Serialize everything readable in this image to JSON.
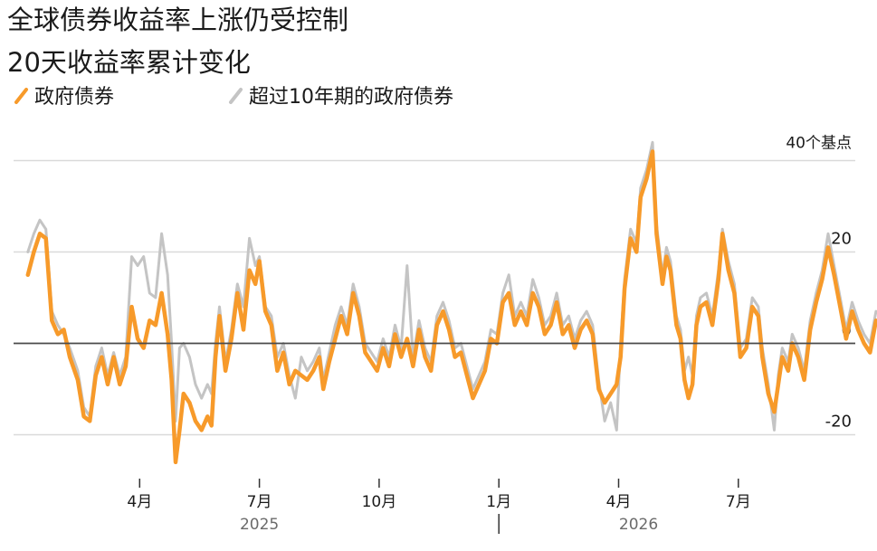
{
  "chart_data": {
    "type": "line",
    "title": "全球债券收益率上涨仍受控制",
    "subtitle": "20天收益率累计变化",
    "unit_label": "40个基点",
    "y_ticks": [
      20,
      0,
      -20
    ],
    "ylim": [
      -27,
      45
    ],
    "x_ticks": [
      {
        "label": "4月",
        "month": 3
      },
      {
        "label": "7月",
        "month": 6
      },
      {
        "label": "10月",
        "month": 9
      },
      {
        "label": "1月",
        "month": 12
      },
      {
        "label": "4月",
        "month": 15
      },
      {
        "label": "7月",
        "month": 18
      }
    ],
    "years": [
      {
        "label": "2025",
        "month": 6
      },
      {
        "label": "2026",
        "month": 15.5
      }
    ],
    "series": [
      {
        "name": "政府债券",
        "color": "#f79a2a",
        "points": [
          [
            0.2,
            15
          ],
          [
            0.35,
            20
          ],
          [
            0.5,
            24
          ],
          [
            0.65,
            23
          ],
          [
            0.8,
            5
          ],
          [
            0.95,
            2
          ],
          [
            1.1,
            3
          ],
          [
            1.25,
            -3
          ],
          [
            1.45,
            -8
          ],
          [
            1.6,
            -16
          ],
          [
            1.75,
            -17
          ],
          [
            1.9,
            -7
          ],
          [
            2.05,
            -3
          ],
          [
            2.2,
            -9
          ],
          [
            2.35,
            -3
          ],
          [
            2.5,
            -9
          ],
          [
            2.65,
            -5
          ],
          [
            2.8,
            8
          ],
          [
            2.95,
            1
          ],
          [
            3.1,
            -1
          ],
          [
            3.25,
            5
          ],
          [
            3.4,
            4
          ],
          [
            3.55,
            11
          ],
          [
            3.7,
            2
          ],
          [
            3.8,
            -8
          ],
          [
            3.9,
            -26
          ],
          [
            4.0,
            -19
          ],
          [
            4.1,
            -11
          ],
          [
            4.25,
            -13
          ],
          [
            4.4,
            -17
          ],
          [
            4.55,
            -19
          ],
          [
            4.7,
            -16
          ],
          [
            4.8,
            -18
          ],
          [
            4.9,
            -3
          ],
          [
            5.0,
            6
          ],
          [
            5.15,
            -6
          ],
          [
            5.3,
            1
          ],
          [
            5.45,
            11
          ],
          [
            5.6,
            3
          ],
          [
            5.75,
            16
          ],
          [
            5.9,
            13
          ],
          [
            6.0,
            18
          ],
          [
            6.15,
            7
          ],
          [
            6.3,
            4
          ],
          [
            6.45,
            -6
          ],
          [
            6.6,
            -2
          ],
          [
            6.75,
            -9
          ],
          [
            6.9,
            -6
          ],
          [
            7.05,
            -7
          ],
          [
            7.2,
            -8
          ],
          [
            7.35,
            -6
          ],
          [
            7.5,
            -3
          ],
          [
            7.6,
            -10
          ],
          [
            7.75,
            -4
          ],
          [
            7.9,
            1
          ],
          [
            8.05,
            6
          ],
          [
            8.2,
            2
          ],
          [
            8.35,
            11
          ],
          [
            8.5,
            6
          ],
          [
            8.65,
            -2
          ],
          [
            8.8,
            -4
          ],
          [
            8.95,
            -6
          ],
          [
            9.1,
            -1
          ],
          [
            9.25,
            -5
          ],
          [
            9.4,
            2
          ],
          [
            9.55,
            -3
          ],
          [
            9.7,
            1
          ],
          [
            9.85,
            -5
          ],
          [
            10.0,
            3
          ],
          [
            10.15,
            -3
          ],
          [
            10.3,
            -6
          ],
          [
            10.45,
            4
          ],
          [
            10.6,
            7
          ],
          [
            10.75,
            3
          ],
          [
            10.9,
            -3
          ],
          [
            11.05,
            -2
          ],
          [
            11.2,
            -7
          ],
          [
            11.35,
            -12
          ],
          [
            11.5,
            -9
          ],
          [
            11.65,
            -6
          ],
          [
            11.8,
            1
          ],
          [
            11.95,
            0
          ],
          [
            12.1,
            9
          ],
          [
            12.25,
            11
          ],
          [
            12.4,
            4
          ],
          [
            12.55,
            7
          ],
          [
            12.7,
            4
          ],
          [
            12.85,
            11
          ],
          [
            13.0,
            8
          ],
          [
            13.15,
            2
          ],
          [
            13.3,
            4
          ],
          [
            13.45,
            9
          ],
          [
            13.6,
            2
          ],
          [
            13.75,
            4
          ],
          [
            13.9,
            -1
          ],
          [
            14.05,
            3
          ],
          [
            14.2,
            5
          ],
          [
            14.35,
            2
          ],
          [
            14.5,
            -10
          ],
          [
            14.65,
            -13
          ],
          [
            14.8,
            -11
          ],
          [
            14.95,
            -9
          ],
          [
            15.05,
            -3
          ],
          [
            15.15,
            12
          ],
          [
            15.3,
            23
          ],
          [
            15.45,
            20
          ],
          [
            15.55,
            32
          ],
          [
            15.7,
            36
          ],
          [
            15.85,
            42
          ],
          [
            15.95,
            24
          ],
          [
            16.1,
            13
          ],
          [
            16.2,
            19
          ],
          [
            16.3,
            16
          ],
          [
            16.45,
            4
          ],
          [
            16.55,
            1
          ],
          [
            16.65,
            -8
          ],
          [
            16.75,
            -12
          ],
          [
            16.85,
            -9
          ],
          [
            16.95,
            4
          ],
          [
            17.05,
            8
          ],
          [
            17.2,
            9
          ],
          [
            17.35,
            4
          ],
          [
            17.5,
            14
          ],
          [
            17.6,
            24
          ],
          [
            17.75,
            16
          ],
          [
            17.9,
            11
          ],
          [
            18.05,
            -3
          ],
          [
            18.2,
            -1
          ],
          [
            18.35,
            8
          ],
          [
            18.5,
            6
          ],
          [
            18.6,
            -3
          ],
          [
            18.75,
            -11
          ],
          [
            18.9,
            -15
          ],
          [
            19.0,
            -9
          ],
          [
            19.1,
            -3
          ],
          [
            19.25,
            -6
          ],
          [
            19.35,
            0
          ],
          [
            19.5,
            -3
          ],
          [
            19.65,
            -8
          ],
          [
            19.8,
            3
          ],
          [
            19.95,
            9
          ],
          [
            20.1,
            14
          ],
          [
            20.25,
            21
          ],
          [
            20.4,
            15
          ],
          [
            20.55,
            8
          ],
          [
            20.7,
            1
          ],
          [
            20.85,
            7
          ],
          [
            21.0,
            3
          ],
          [
            21.15,
            0
          ],
          [
            21.3,
            -2
          ],
          [
            21.45,
            5
          ],
          [
            21.6,
            4
          ],
          [
            21.75,
            9
          ],
          [
            21.85,
            17
          ]
        ]
      },
      {
        "name": "超过10年期的政府债券",
        "color": "#c4c4c4",
        "points": [
          [
            0.2,
            20
          ],
          [
            0.35,
            24
          ],
          [
            0.5,
            27
          ],
          [
            0.65,
            25
          ],
          [
            0.8,
            7
          ],
          [
            0.95,
            4
          ],
          [
            1.1,
            2
          ],
          [
            1.25,
            -1
          ],
          [
            1.45,
            -6
          ],
          [
            1.6,
            -14
          ],
          [
            1.75,
            -16
          ],
          [
            1.9,
            -5
          ],
          [
            2.05,
            -1
          ],
          [
            2.2,
            -7
          ],
          [
            2.35,
            -2
          ],
          [
            2.5,
            -7
          ],
          [
            2.65,
            -3
          ],
          [
            2.8,
            19
          ],
          [
            2.95,
            17
          ],
          [
            3.1,
            19
          ],
          [
            3.25,
            11
          ],
          [
            3.4,
            10
          ],
          [
            3.55,
            24
          ],
          [
            3.7,
            15
          ],
          [
            3.8,
            0
          ],
          [
            3.9,
            -17
          ],
          [
            4.0,
            -1
          ],
          [
            4.1,
            0
          ],
          [
            4.25,
            -3
          ],
          [
            4.4,
            -9
          ],
          [
            4.55,
            -12
          ],
          [
            4.7,
            -9
          ],
          [
            4.8,
            -11
          ],
          [
            4.9,
            0
          ],
          [
            5.0,
            8
          ],
          [
            5.15,
            -4
          ],
          [
            5.3,
            3
          ],
          [
            5.45,
            13
          ],
          [
            5.6,
            8
          ],
          [
            5.75,
            23
          ],
          [
            5.9,
            17
          ],
          [
            6.0,
            19
          ],
          [
            6.15,
            8
          ],
          [
            6.3,
            6
          ],
          [
            6.45,
            -3
          ],
          [
            6.6,
            0
          ],
          [
            6.75,
            -7
          ],
          [
            6.9,
            -12
          ],
          [
            7.05,
            -3
          ],
          [
            7.2,
            -6
          ],
          [
            7.35,
            -4
          ],
          [
            7.5,
            -1
          ],
          [
            7.6,
            -8
          ],
          [
            7.75,
            -2
          ],
          [
            7.9,
            4
          ],
          [
            8.05,
            8
          ],
          [
            8.2,
            4
          ],
          [
            8.35,
            13
          ],
          [
            8.5,
            8
          ],
          [
            8.65,
            0
          ],
          [
            8.8,
            -2
          ],
          [
            8.95,
            -4
          ],
          [
            9.1,
            1
          ],
          [
            9.25,
            -3
          ],
          [
            9.4,
            4
          ],
          [
            9.55,
            -1
          ],
          [
            9.7,
            17
          ],
          [
            9.85,
            -3
          ],
          [
            10.0,
            5
          ],
          [
            10.15,
            -1
          ],
          [
            10.3,
            -4
          ],
          [
            10.45,
            6
          ],
          [
            10.6,
            9
          ],
          [
            10.75,
            5
          ],
          [
            10.9,
            -1
          ],
          [
            11.05,
            0
          ],
          [
            11.2,
            -5
          ],
          [
            11.35,
            -10
          ],
          [
            11.5,
            -7
          ],
          [
            11.65,
            -4
          ],
          [
            11.8,
            3
          ],
          [
            11.95,
            2
          ],
          [
            12.1,
            11
          ],
          [
            12.25,
            15
          ],
          [
            12.4,
            6
          ],
          [
            12.55,
            9
          ],
          [
            12.7,
            6
          ],
          [
            12.85,
            14
          ],
          [
            13.0,
            10
          ],
          [
            13.15,
            4
          ],
          [
            13.3,
            6
          ],
          [
            13.45,
            11
          ],
          [
            13.6,
            4
          ],
          [
            13.75,
            6
          ],
          [
            13.9,
            1
          ],
          [
            14.05,
            5
          ],
          [
            14.2,
            7
          ],
          [
            14.35,
            4
          ],
          [
            14.5,
            -8
          ],
          [
            14.65,
            -17
          ],
          [
            14.8,
            -13
          ],
          [
            14.95,
            -19
          ],
          [
            15.05,
            0
          ],
          [
            15.15,
            14
          ],
          [
            15.3,
            25
          ],
          [
            15.45,
            22
          ],
          [
            15.55,
            34
          ],
          [
            15.7,
            38
          ],
          [
            15.85,
            44
          ],
          [
            15.95,
            26
          ],
          [
            16.1,
            15
          ],
          [
            16.2,
            21
          ],
          [
            16.3,
            18
          ],
          [
            16.45,
            6
          ],
          [
            16.55,
            3
          ],
          [
            16.65,
            -6
          ],
          [
            16.75,
            -3
          ],
          [
            16.85,
            -7
          ],
          [
            16.95,
            6
          ],
          [
            17.05,
            10
          ],
          [
            17.2,
            11
          ],
          [
            17.35,
            6
          ],
          [
            17.5,
            16
          ],
          [
            17.6,
            25
          ],
          [
            17.75,
            18
          ],
          [
            17.9,
            13
          ],
          [
            18.05,
            -1
          ],
          [
            18.2,
            1
          ],
          [
            18.35,
            10
          ],
          [
            18.5,
            8
          ],
          [
            18.6,
            -1
          ],
          [
            18.75,
            -9
          ],
          [
            18.9,
            -19
          ],
          [
            19.0,
            -7
          ],
          [
            19.1,
            -1
          ],
          [
            19.25,
            -4
          ],
          [
            19.35,
            2
          ],
          [
            19.5,
            -1
          ],
          [
            19.65,
            -6
          ],
          [
            19.8,
            5
          ],
          [
            19.95,
            11
          ],
          [
            20.1,
            16
          ],
          [
            20.25,
            24
          ],
          [
            20.4,
            17
          ],
          [
            20.55,
            10
          ],
          [
            20.7,
            3
          ],
          [
            20.85,
            9
          ],
          [
            21.0,
            5
          ],
          [
            21.15,
            2
          ],
          [
            21.3,
            0
          ],
          [
            21.45,
            7
          ],
          [
            21.6,
            6
          ],
          [
            21.75,
            11
          ],
          [
            21.85,
            15
          ]
        ]
      }
    ]
  }
}
